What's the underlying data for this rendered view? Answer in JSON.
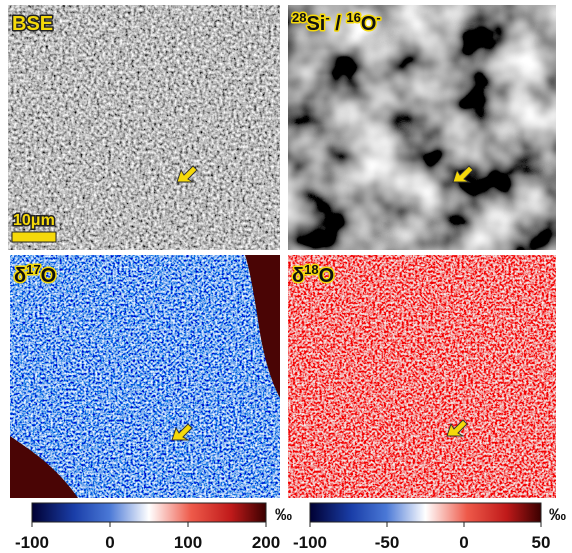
{
  "panels": [
    {
      "label": [
        {
          "text": "BSE",
          "sup": false
        }
      ],
      "scale_bar": "10μm"
    },
    {
      "label": [
        {
          "text": "28",
          "sup": true
        },
        {
          "text": "Si",
          "sup": false
        },
        {
          "text": "-",
          "sup": true
        },
        {
          "text": " / ",
          "sup": false
        },
        {
          "text": "16",
          "sup": true
        },
        {
          "text": "O",
          "sup": false
        },
        {
          "text": "-",
          "sup": true
        }
      ]
    },
    {
      "label": [
        {
          "text": "δ",
          "sup": false
        },
        {
          "text": "17",
          "sup": true
        },
        {
          "text": "O",
          "sup": false
        }
      ]
    },
    {
      "label": [
        {
          "text": "δ",
          "sup": false
        },
        {
          "text": "18",
          "sup": true
        },
        {
          "text": "O",
          "sup": false
        }
      ]
    }
  ],
  "colorbars": [
    {
      "lim": [
        -100,
        200
      ],
      "ticks": [
        -100,
        0,
        100,
        200
      ],
      "unit": "‰"
    },
    {
      "lim": [
        -100,
        50
      ],
      "ticks": [
        -100,
        -50,
        0,
        50
      ],
      "unit": "‰"
    }
  ]
}
